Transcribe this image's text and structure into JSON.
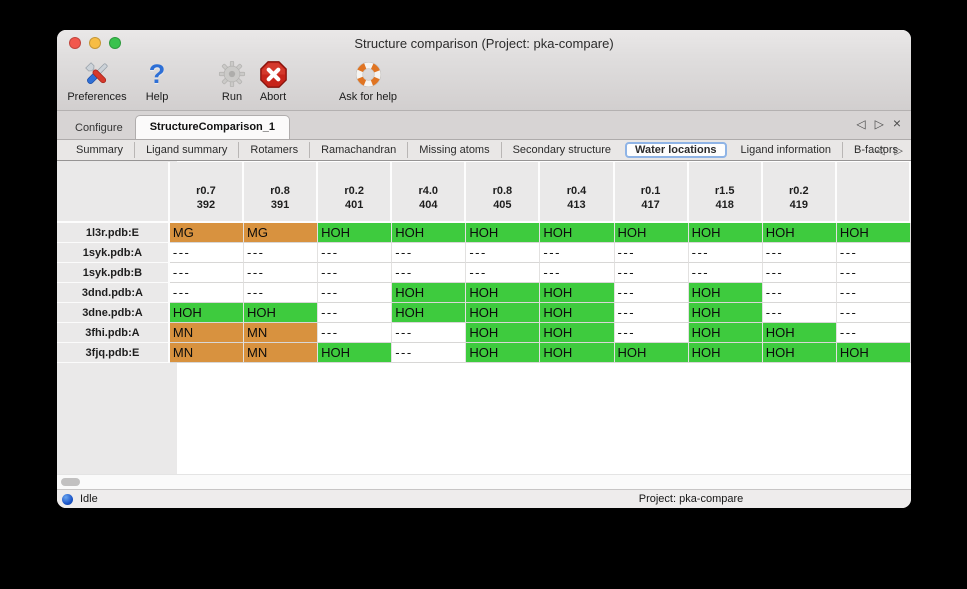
{
  "window": {
    "title": "Structure comparison (Project: pka-compare)"
  },
  "traffic_lights": {
    "close_color": "#f2574d",
    "minimize_color": "#f7bd45",
    "zoom_color": "#3ac24e"
  },
  "toolbar": {
    "preferences_label": "Preferences",
    "help_label": "Help",
    "run_label": "Run",
    "abort_label": "Abort",
    "ask_for_help_label": "Ask for help",
    "help_glyph": "?"
  },
  "tabs": {
    "configure_label": "Configure",
    "structure_comparison_label": "StructureComparison_1",
    "selected": "StructureComparison_1",
    "nav_prev": "◁",
    "nav_next": "▷",
    "nav_close": "×"
  },
  "subtabs": {
    "items": [
      "Summary",
      "Ligand summary",
      "Rotamers",
      "Ramachandran",
      "Missing atoms",
      "Secondary structure",
      "Water locations",
      "Ligand information",
      "B-factors"
    ],
    "selected": "Water locations",
    "nav_prev": "◁",
    "nav_next": "▷"
  },
  "table": {
    "columns": [
      {
        "line1": "r0.7",
        "line2": "392"
      },
      {
        "line1": "r0.8",
        "line2": "391"
      },
      {
        "line1": "r0.2",
        "line2": "401"
      },
      {
        "line1": "r4.0",
        "line2": "404"
      },
      {
        "line1": "r0.8",
        "line2": "405"
      },
      {
        "line1": "r0.4",
        "line2": "413"
      },
      {
        "line1": "r0.1",
        "line2": "417"
      },
      {
        "line1": "r1.5",
        "line2": "418"
      },
      {
        "line1": "r0.2",
        "line2": "419"
      },
      {
        "line1": "",
        "line2": ""
      }
    ],
    "rows": [
      {
        "name": "1l3r.pdb:E",
        "cells": [
          "MG",
          "MG",
          "HOH",
          "HOH",
          "HOH",
          "HOH",
          "HOH",
          "HOH",
          "HOH",
          "HOH"
        ]
      },
      {
        "name": "1syk.pdb:A",
        "cells": [
          "---",
          "---",
          "---",
          "---",
          "---",
          "---",
          "---",
          "---",
          "---",
          "---"
        ]
      },
      {
        "name": "1syk.pdb:B",
        "cells": [
          "---",
          "---",
          "---",
          "---",
          "---",
          "---",
          "---",
          "---",
          "---",
          "---"
        ]
      },
      {
        "name": "3dnd.pdb:A",
        "cells": [
          "---",
          "---",
          "---",
          "HOH",
          "HOH",
          "HOH",
          "---",
          "HOH",
          "---",
          "---"
        ]
      },
      {
        "name": "3dne.pdb:A",
        "cells": [
          "HOH",
          "HOH",
          "---",
          "HOH",
          "HOH",
          "HOH",
          "---",
          "HOH",
          "---",
          "---"
        ]
      },
      {
        "name": "3fhi.pdb:A",
        "cells": [
          "MN",
          "MN",
          "---",
          "---",
          "HOH",
          "HOH",
          "---",
          "HOH",
          "HOH",
          "---"
        ]
      },
      {
        "name": "3fjq.pdb:E",
        "cells": [
          "MN",
          "MN",
          "HOH",
          "---",
          "HOH",
          "HOH",
          "HOH",
          "HOH",
          "HOH",
          "HOH"
        ]
      }
    ],
    "empty_value": "---",
    "value_colors": {
      "HOH": "#3ecb3e",
      "MG": "#d8923f",
      "MN": "#d8923f"
    }
  },
  "statusbar": {
    "status": "Idle",
    "project": "Project: pka-compare"
  }
}
